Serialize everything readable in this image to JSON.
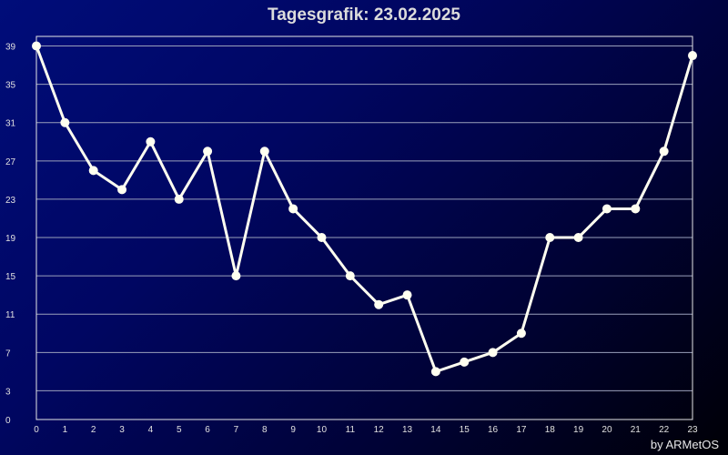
{
  "title": "Tagesgrafik: 23.02.2025",
  "credit": "by ARMetOS",
  "colors": {
    "line": "#fffff0",
    "grid": "#9aa0bb",
    "frame": "#e6e6e6"
  },
  "chart_data": {
    "type": "line",
    "title": "Tagesgrafik: 23.02.2025",
    "xlabel": "",
    "ylabel": "",
    "x": [
      0,
      1,
      2,
      3,
      4,
      5,
      6,
      7,
      8,
      9,
      10,
      11,
      12,
      13,
      14,
      15,
      16,
      17,
      18,
      19,
      20,
      21,
      22,
      23
    ],
    "series": [
      {
        "values": [
          39,
          31,
          26,
          24,
          29,
          23,
          28,
          15,
          28,
          22,
          19,
          15,
          12,
          13,
          5,
          6,
          7,
          9,
          19,
          19,
          22,
          22,
          28,
          38
        ]
      }
    ],
    "xlim": [
      0,
      23
    ],
    "ylim": [
      0,
      40
    ],
    "yticks": [
      0,
      3,
      7,
      11,
      15,
      19,
      23,
      27,
      31,
      35,
      39
    ],
    "grid": true,
    "legend": "none"
  }
}
